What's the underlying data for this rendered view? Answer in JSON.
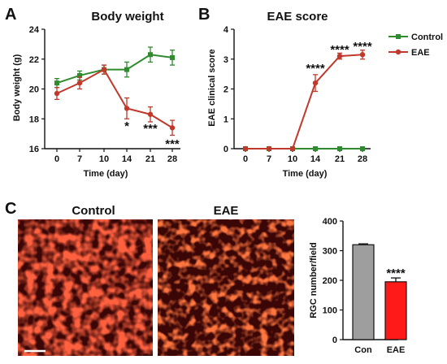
{
  "panels": {
    "A": "A",
    "B": "B",
    "C": "C"
  },
  "micrographs": {
    "control_label": "Control",
    "eae_label": "EAE"
  },
  "chart_data": [
    {
      "type": "line",
      "title": "Body weight",
      "xlabel": "Time (day)",
      "ylabel": "Body weight (g)",
      "x": [
        0,
        7,
        10,
        14,
        21,
        28
      ],
      "ylim": [
        16,
        24
      ],
      "yticks": [
        16,
        18,
        20,
        22,
        24
      ],
      "series": [
        {
          "name": "Control",
          "color": "#2e8b2e",
          "values": [
            20.4,
            20.9,
            21.3,
            21.3,
            22.3,
            22.1
          ],
          "errors": [
            0.3,
            0.3,
            0.3,
            0.5,
            0.5,
            0.5
          ]
        },
        {
          "name": "EAE",
          "color": "#c0392b",
          "values": [
            19.7,
            20.4,
            21.3,
            18.7,
            18.3,
            17.4
          ],
          "errors": [
            0.4,
            0.4,
            0.3,
            0.7,
            0.5,
            0.5
          ]
        }
      ],
      "annotations": [
        {
          "x": 14,
          "text": "*"
        },
        {
          "x": 21,
          "text": "***"
        },
        {
          "x": 28,
          "text": "***"
        }
      ]
    },
    {
      "type": "line",
      "title": "EAE score",
      "xlabel": "Time (day)",
      "ylabel": "EAE clinical score",
      "x": [
        0,
        7,
        10,
        14,
        21,
        28
      ],
      "ylim": [
        0,
        4
      ],
      "yticks": [
        0,
        1,
        2,
        3,
        4
      ],
      "legend_position": "top-right",
      "series": [
        {
          "name": "Control",
          "color": "#2e8b2e",
          "values": [
            0,
            0,
            0,
            0,
            0,
            0
          ],
          "errors": [
            0,
            0,
            0,
            0,
            0,
            0
          ]
        },
        {
          "name": "EAE",
          "color": "#c0392b",
          "values": [
            0,
            0,
            0,
            2.2,
            3.1,
            3.15
          ],
          "errors": [
            0,
            0,
            0,
            0.28,
            0.1,
            0.15
          ]
        }
      ],
      "annotations": [
        {
          "x": 14,
          "text": "****"
        },
        {
          "x": 21,
          "text": "****"
        },
        {
          "x": 28,
          "text": "****"
        }
      ]
    },
    {
      "type": "bar",
      "title": "",
      "xlabel": "",
      "ylabel": "RGC number/field",
      "categories": [
        "Con",
        "EAE"
      ],
      "values": [
        320,
        195
      ],
      "errors": [
        3,
        13
      ],
      "colors": [
        "#9e9e9e",
        "#ff1a1a"
      ],
      "ylim": [
        0,
        400
      ],
      "yticks": [
        0,
        100,
        200,
        300,
        400
      ],
      "annotations": [
        {
          "category": "EAE",
          "text": "****"
        }
      ]
    }
  ]
}
